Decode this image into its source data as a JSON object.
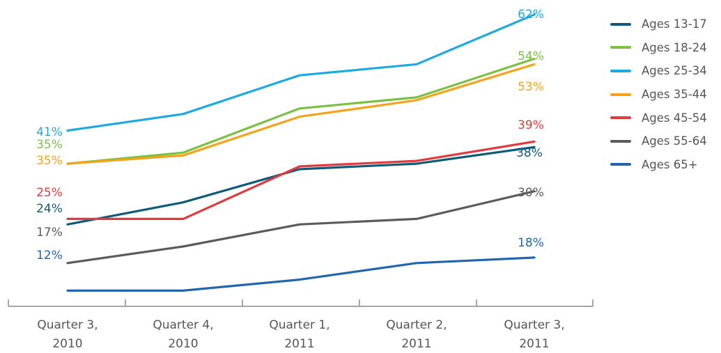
{
  "chart_data": {
    "type": "line",
    "categories": [
      "Quarter 3, 2010",
      "Quarter 4, 2010",
      "Quarter 1, 2011",
      "Quarter 2, 2011",
      "Quarter 3, 2011"
    ],
    "category_lines": [
      [
        "Quarter 3,",
        "2010"
      ],
      [
        "Quarter 4,",
        "2010"
      ],
      [
        "Quarter 1,",
        "2011"
      ],
      [
        "Quarter 2,",
        "2011"
      ],
      [
        "Quarter 3,",
        "2011"
      ]
    ],
    "series": [
      {
        "name": "Ages 13-17",
        "color": "#0f5b78",
        "values": [
          24,
          28,
          34,
          35,
          38
        ],
        "start_label": "24%",
        "end_label": "38%"
      },
      {
        "name": "Ages 18-24",
        "color": "#7ac143",
        "values": [
          35,
          37,
          45,
          47,
          54
        ],
        "start_label": "35%",
        "end_label": "54%"
      },
      {
        "name": "Ages 25-34",
        "color": "#1fa9e1",
        "values": [
          41,
          44,
          51,
          53,
          62
        ],
        "start_label": "41%",
        "end_label": "62%"
      },
      {
        "name": "Ages 35-44",
        "color": "#f7a21b",
        "values": [
          35,
          36.5,
          43.5,
          46.5,
          53
        ],
        "start_label": "35%",
        "end_label": "53%"
      },
      {
        "name": "Ages 45-54",
        "color": "#e03a3e",
        "values": [
          25,
          25,
          34.5,
          35.5,
          39
        ],
        "start_label": "25%",
        "end_label": "39%"
      },
      {
        "name": "Ages 55-64",
        "color": "#5a5b5d",
        "values": [
          17,
          20,
          24,
          25,
          30
        ],
        "start_label": "17%",
        "end_label": "30%"
      },
      {
        "name": "Ages 65+",
        "color": "#2166ac",
        "values": [
          12,
          12,
          14,
          17,
          18
        ],
        "start_label": "12%",
        "end_label": "18%"
      }
    ],
    "title": "",
    "xlabel": "",
    "ylabel": "",
    "legend_position": "right",
    "grid": false
  }
}
